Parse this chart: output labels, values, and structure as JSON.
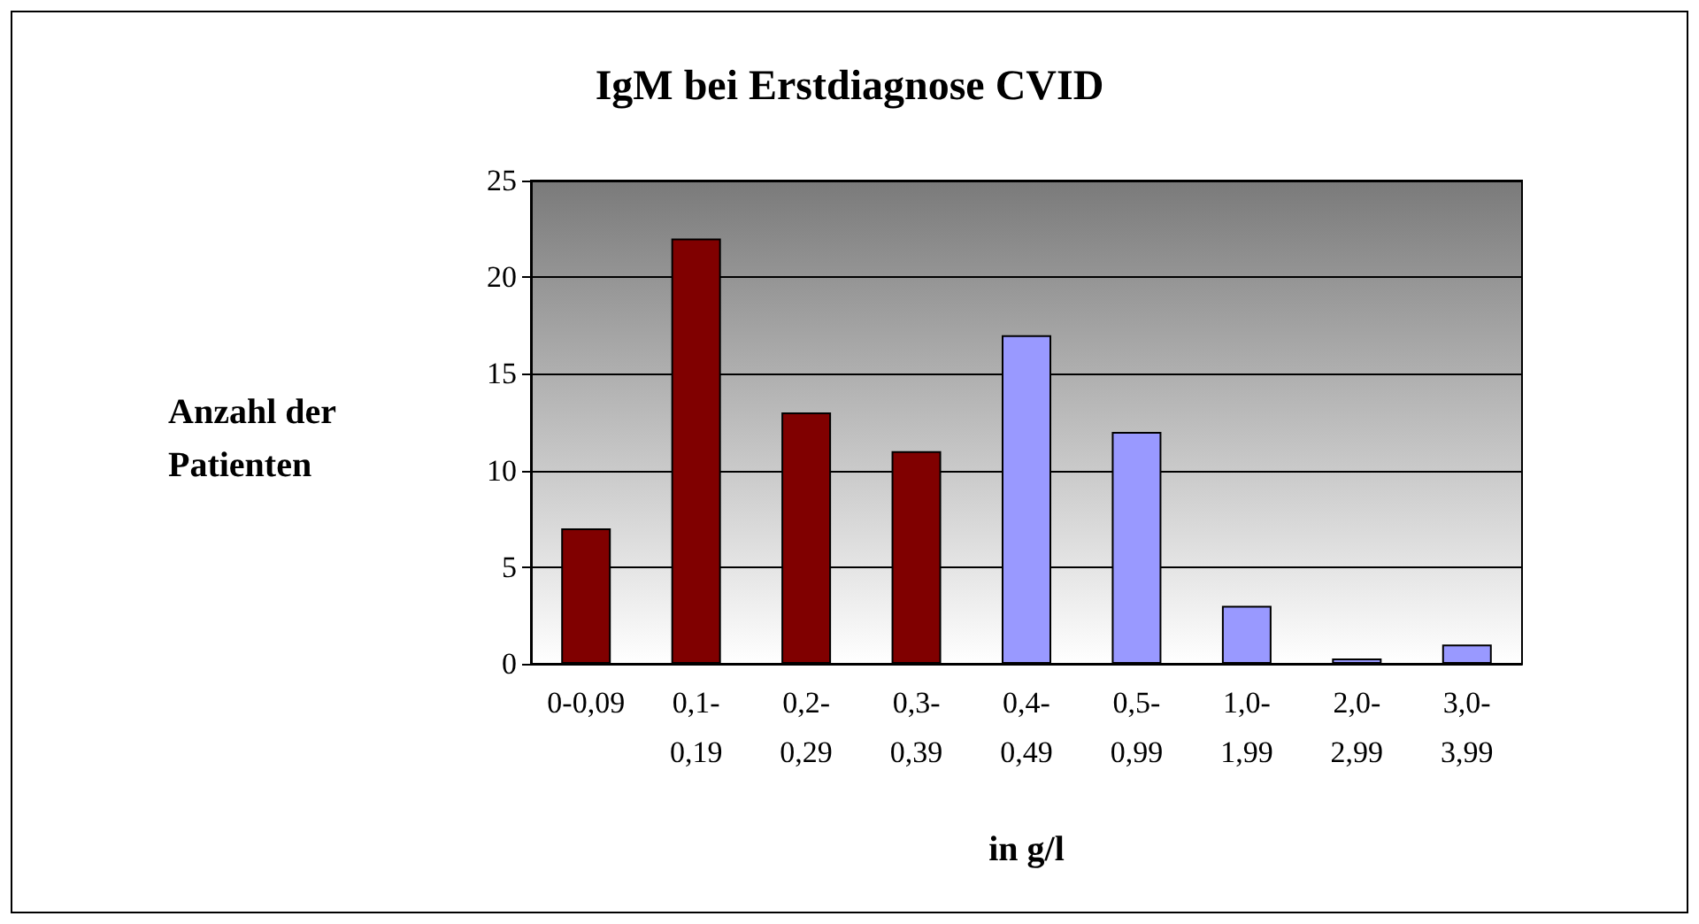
{
  "chart_data": {
    "type": "bar",
    "title": "IgM bei Erstdiagnose CVID",
    "xlabel": "in g/l",
    "ylabel": "Anzahl der Patienten",
    "categories": [
      "0-0,09",
      "0,1-0,19",
      "0,2-0,29",
      "0,3-0,39",
      "0,4-0,49",
      "0,5-0,99",
      "1,0-1,99",
      "2,0-2,99",
      "3,0-3,99"
    ],
    "values": [
      7,
      22,
      13,
      11,
      17,
      12,
      3,
      0,
      1
    ],
    "colors": [
      "#800000",
      "#800000",
      "#800000",
      "#800000",
      "#9999ff",
      "#9999ff",
      "#9999ff",
      "#9999ff",
      "#9999ff"
    ],
    "ylim": [
      0,
      25
    ],
    "yticks": [
      0,
      5,
      10,
      15,
      20,
      25
    ],
    "grid": "y"
  }
}
